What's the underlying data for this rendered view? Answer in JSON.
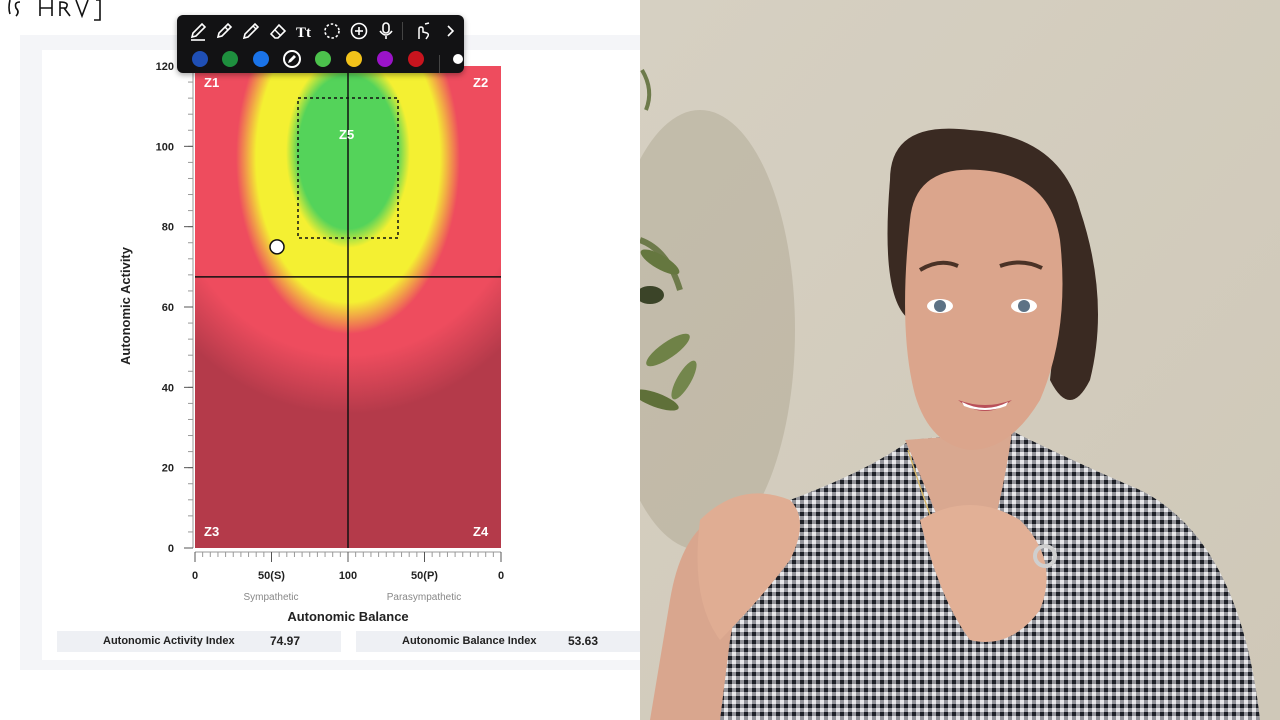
{
  "handwriting_fragment": "is HRV",
  "toolbar": {
    "tools": [
      {
        "name": "pen-tool",
        "active": true
      },
      {
        "name": "highlighter-tool"
      },
      {
        "name": "pencil-tool"
      },
      {
        "name": "eraser-tool"
      },
      {
        "name": "text-tool",
        "glyph": "Tt"
      },
      {
        "name": "lasso-tool"
      },
      {
        "name": "add-tool"
      },
      {
        "name": "microphone-tool"
      },
      {
        "name": "touch-tool"
      },
      {
        "name": "more-chevron"
      }
    ],
    "colors": [
      "#1f4fb5",
      "#1e8f3e",
      "#1a73e8",
      "#121214",
      "#4cc24c",
      "#f2c21a",
      "#9b13c9",
      "#c8141e"
    ]
  },
  "chart_data": {
    "type": "heatmap",
    "y_axis": {
      "label": "Autonomic Activity",
      "range": [
        0,
        120
      ],
      "ticks": [
        0,
        20,
        40,
        60,
        80,
        100,
        120
      ]
    },
    "x_axis": {
      "label": "Autonomic Balance",
      "tick_labels": [
        "0",
        "50(S)",
        "100",
        "50(P)",
        "0"
      ],
      "sub_labels": [
        "Sympathetic",
        "Parasympathetic"
      ]
    },
    "zones": [
      {
        "label": "Z1",
        "region": "upper-left"
      },
      {
        "label": "Z2",
        "region": "upper-right"
      },
      {
        "label": "Z3",
        "region": "lower-left"
      },
      {
        "label": "Z4",
        "region": "lower-right"
      },
      {
        "label": "Z5",
        "region": "center-top"
      }
    ],
    "zone_colors": {
      "outer": "#b43a4a",
      "red": "#ee4c5e",
      "yellow": "#f4f032",
      "green": "#54d35a"
    },
    "crosshair": {
      "x": 100,
      "y": 67.5
    },
    "point": {
      "activity_index": 74.97,
      "balance_index": 53.63
    }
  },
  "indices": {
    "activity_label": "Autonomic Activity Index",
    "activity_value": "74.97",
    "balance_label": "Autonomic Balance Index",
    "balance_value": "53.63"
  }
}
